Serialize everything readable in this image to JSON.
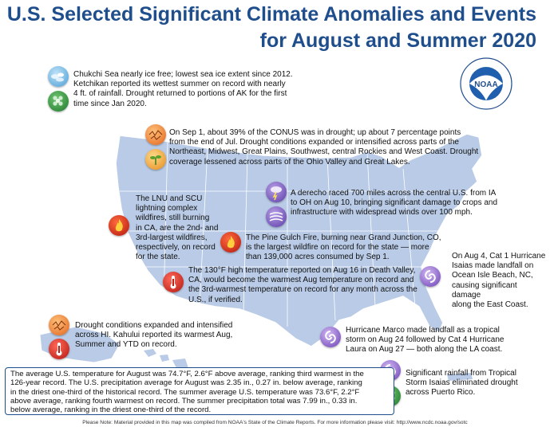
{
  "title_line1": "U.S. Selected Significant Climate Anomalies and Events",
  "title_line2": "for August and Summer 2020",
  "noaa_logo_text": "NOAA",
  "events": [
    {
      "id": "alaska",
      "lines": [
        "Chukchi Sea nearly ice free; lowest sea ice extent since 2012.",
        "Ketchikan reported its wettest summer on record with nearly",
        "4 ft. of rainfall. Drought returned to portions of AK for the first",
        "time since Jan 2020."
      ]
    },
    {
      "id": "conus",
      "lines": [
        "On Sep 1, about 39% of the CONUS was in drought; up about 7 percentage points",
        "from the end of Jul. Drought conditions expanded or intensified across parts of the",
        "Northeast, Midwest, Great Plains, Southwest, central Rockies and West Coast. Drought",
        "coverage lessened across parts of the Ohio Valley and Great Lakes."
      ]
    },
    {
      "id": "derecho",
      "lines": [
        "A derecho raced 700 miles across the central U.S. from IA",
        "to OH on Aug 10, bringing significant damage to crops and",
        "infrastructure with widespread winds over 100 mph."
      ]
    },
    {
      "id": "lnu",
      "lines": [
        "The LNU and SCU",
        "lightning complex",
        "wildfires, still burning",
        "in CA, are the 2nd- and",
        "3rd-largest wildfires,",
        "respectively, on record",
        "for the state."
      ]
    },
    {
      "id": "pinegulch",
      "lines": [
        "The Pine Gulch Fire, burning near Grand Junction, CO,",
        "is the largest wildfire on record for the state — more",
        "than 139,000 acres consumed by Sep 1."
      ]
    },
    {
      "id": "isaias",
      "lines": [
        "On Aug 4, Cat 1 Hurricane",
        "Isaias made landfall on",
        "Ocean Isle Beach, NC,",
        "causing significant damage",
        "along the East Coast."
      ]
    },
    {
      "id": "deathvalley",
      "lines": [
        "The 130°F high temperature reported on Aug 16 in Death Valley,",
        "CA, would become the warmest Aug temperature on record and",
        "the 3rd-warmest temperature on record for any month across the",
        "U.S., if verified."
      ]
    },
    {
      "id": "hawaii",
      "lines": [
        "Drought conditions expanded and intensified",
        "across HI. Kahului reported its warmest Aug,",
        "Summer and YTD on record."
      ]
    },
    {
      "id": "marco",
      "lines": [
        "Hurricane Marco made landfall as a tropical",
        "storm on Aug 24 followed by Cat 4 Hurricane",
        "Laura on Aug 27 — both along the LA coast."
      ]
    },
    {
      "id": "puertorico",
      "lines": [
        "Significant rainfall from Tropical",
        "Storm Isaias eliminated drought",
        "across Puerto Rico."
      ]
    }
  ],
  "summary_lines": [
    "The average U.S. temperature for August was 74.7°F, 2.6°F above average, ranking third warmest in the",
    "126-year record. The U.S. precipitation average for August was 2.35 in., 0.27 in. below average, ranking",
    "in the driest one-third of the historical record. The summer average U.S. temperature was 73.6°F, 2.2°F",
    "above average, ranking fourth warmest on record. The summer precipitation total was 7.99 in., 0.33 in.",
    "below average, ranking in the driest one-third of the record."
  ],
  "note": "Please Note: Material provided in this map was compiled from NOAA's State of the Climate Reports. For more information please visit: http://www.ncdc.noaa.gov/sotc",
  "icons": [
    "ice-icon",
    "rain-icon",
    "drought-icon",
    "plant-icon",
    "wildfire-icon",
    "thermometer-icon",
    "derecho-icon",
    "wind-icon",
    "hurricane-icon"
  ],
  "colors": {
    "title": "#1f4e8c",
    "map_land": "#b9cbe6",
    "map_border": "#ffffff",
    "box_border": "#1f4e8c"
  }
}
